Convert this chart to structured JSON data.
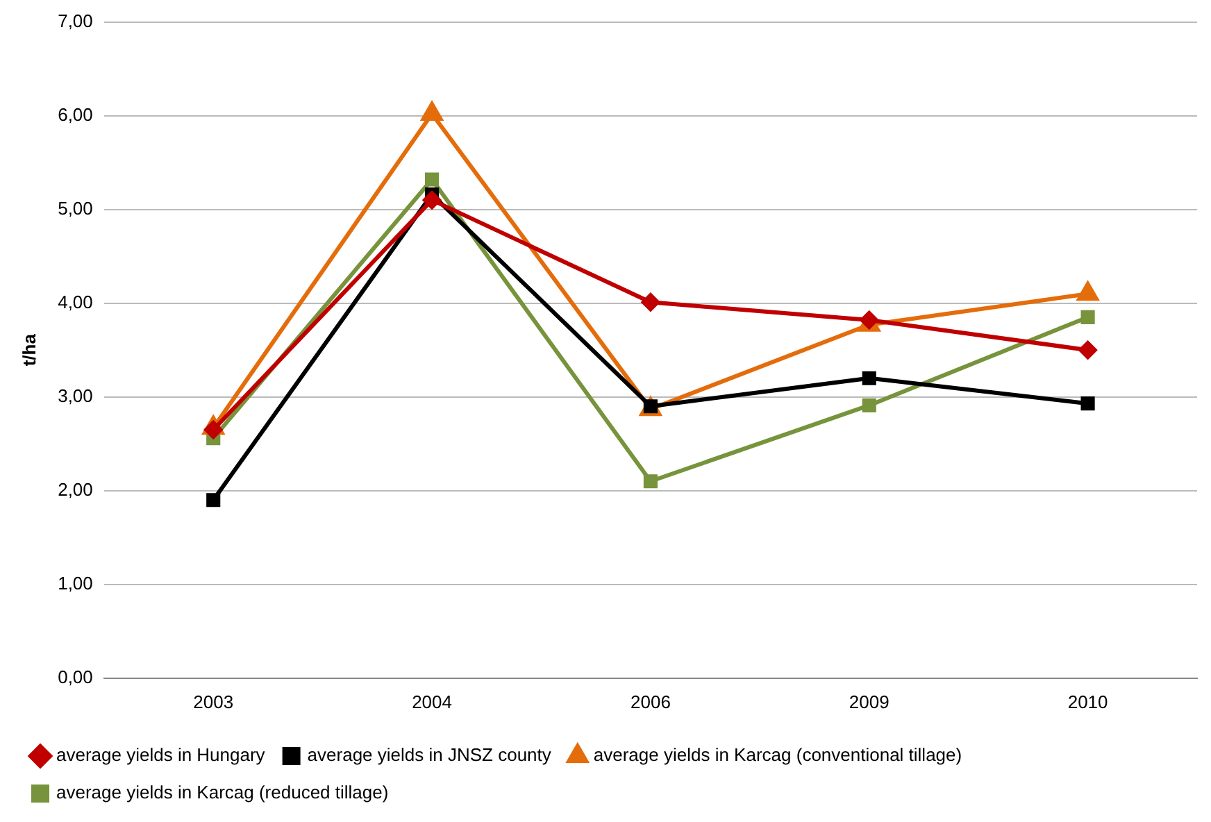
{
  "chart_data": {
    "type": "line",
    "ylabel": "t/ha",
    "categories": [
      "2003",
      "2004",
      "2006",
      "2009",
      "2010"
    ],
    "series": [
      {
        "name": "average yields in Hungary",
        "color": "#c00000",
        "marker": "diamond",
        "values": [
          2.65,
          5.1,
          4.01,
          3.82,
          3.5
        ]
      },
      {
        "name": "average yields in JNSZ county",
        "color": "#000000",
        "marker": "square",
        "values": [
          1.9,
          5.16,
          2.9,
          3.2,
          2.93
        ]
      },
      {
        "name": "average yields in Karcag (conventional tillage)",
        "color": "#e46c0a",
        "marker": "triangle",
        "values": [
          2.67,
          6.02,
          2.87,
          3.77,
          4.1
        ]
      },
      {
        "name": "average yields in Karcag (reduced tillage)",
        "color": "#77933c",
        "marker": "square",
        "values": [
          2.56,
          5.32,
          2.1,
          2.91,
          3.85
        ]
      }
    ],
    "ylim": [
      0,
      7
    ],
    "yticks": [
      {
        "value": 0,
        "label": "0,00"
      },
      {
        "value": 1,
        "label": "1,00"
      },
      {
        "value": 2,
        "label": "2,00"
      },
      {
        "value": 3,
        "label": "3,00"
      },
      {
        "value": 4,
        "label": "4,00"
      },
      {
        "value": 5,
        "label": "5,00"
      },
      {
        "value": 6,
        "label": "6,00"
      },
      {
        "value": 7,
        "label": "7,00"
      }
    ],
    "grid": "y",
    "legend": "bottom",
    "line_style": "solid"
  }
}
